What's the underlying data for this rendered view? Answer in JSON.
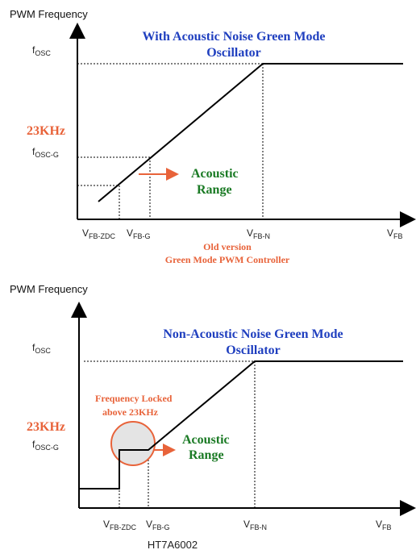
{
  "top": {
    "axis_title": "PWM Frequency",
    "title_line1": "With Acoustic Noise Green Mode",
    "title_line2": "Oscillator",
    "y_label_23khz": "23KHz",
    "y_tick_fosc": "f",
    "y_tick_fosc_sub": "OSC",
    "y_tick_foscg": "f",
    "y_tick_foscg_sub": "OSC-G",
    "acoustic_line1": "Acoustic",
    "acoustic_line2": "Range",
    "x_tick_zdc": "V",
    "x_tick_zdc_sub": "FB-ZDC",
    "x_tick_g": "V",
    "x_tick_g_sub": "FB-G",
    "x_tick_n": "V",
    "x_tick_n_sub": "FB-N",
    "x_tick_fb": "V",
    "x_tick_fb_sub": "FB",
    "note_line1": "Old version",
    "note_line2": "Green Mode PWM Controller"
  },
  "bottom": {
    "axis_title": "PWM Frequency",
    "title_line1": "Non-Acoustic Noise Green Mode",
    "title_line2": "Oscillator",
    "y_label_23khz": "23KHz",
    "y_tick_fosc": "f",
    "y_tick_fosc_sub": "OSC",
    "y_tick_foscg": "f",
    "y_tick_foscg_sub": "OSC-G",
    "locked_line1": "Frequency Locked",
    "locked_line2": "above 23KHz",
    "acoustic_line1": "Acoustic",
    "acoustic_line2": "Range",
    "x_tick_zdc": "V",
    "x_tick_zdc_sub": "FB-ZDC",
    "x_tick_g": "V",
    "x_tick_g_sub": "FB-G",
    "x_tick_n": "V",
    "x_tick_n_sub": "FB-N",
    "x_tick_fb": "V",
    "x_tick_fb_sub": "FB"
  },
  "caption": "HT7A6002",
  "colors": {
    "title_blue": "#1f3fbf",
    "accent_orange": "#e8633a",
    "acoustic_green": "#1a7a24",
    "locked_circle_fill": "#e4e4e4"
  }
}
